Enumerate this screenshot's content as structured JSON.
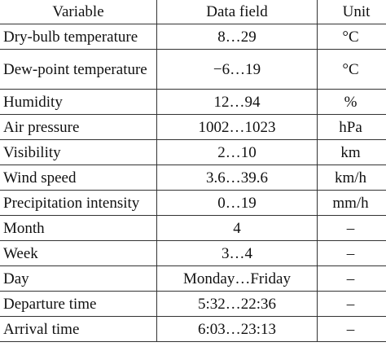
{
  "table": {
    "headers": [
      "Variable",
      "Data field",
      "Unit"
    ],
    "rows": [
      {
        "variable": "Dry-bulb temperature",
        "data_field": "8…29",
        "unit": "°C"
      },
      {
        "variable": "Dew-point temperature",
        "data_field": "−6…19",
        "unit": "°C"
      },
      {
        "variable": "Humidity",
        "data_field": "12…94",
        "unit": "%"
      },
      {
        "variable": "Air pressure",
        "data_field": "1002…1023",
        "unit": "hPa"
      },
      {
        "variable": "Visibility",
        "data_field": "2…10",
        "unit": "km"
      },
      {
        "variable": "Wind speed",
        "data_field": "3.6…39.6",
        "unit": "km/h"
      },
      {
        "variable": "Precipitation intensity",
        "data_field": "0…19",
        "unit": "mm/h"
      },
      {
        "variable": "Month",
        "data_field": "4",
        "unit": "–"
      },
      {
        "variable": "Week",
        "data_field": "3…4",
        "unit": "–"
      },
      {
        "variable": "Day",
        "data_field": "Monday…Friday",
        "unit": "–"
      },
      {
        "variable": "Departure time",
        "data_field": "5:32…22:36",
        "unit": "–"
      },
      {
        "variable": "Arrival time",
        "data_field": "6:03…23:13",
        "unit": "–"
      }
    ]
  }
}
